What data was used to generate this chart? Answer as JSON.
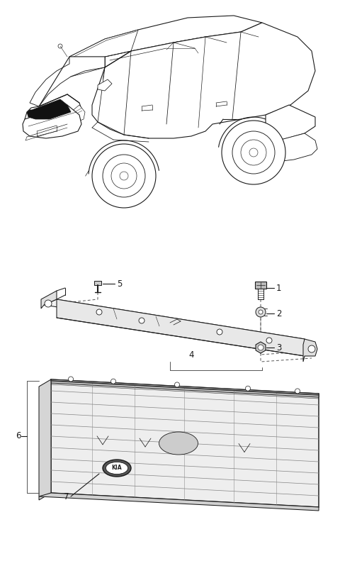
{
  "bg_color": "#ffffff",
  "line_color": "#1a1a1a",
  "fig_width": 4.8,
  "fig_height": 7.91,
  "dpi": 100,
  "car_lw": 0.8,
  "part_lw": 0.75,
  "label_fs": 8.5
}
